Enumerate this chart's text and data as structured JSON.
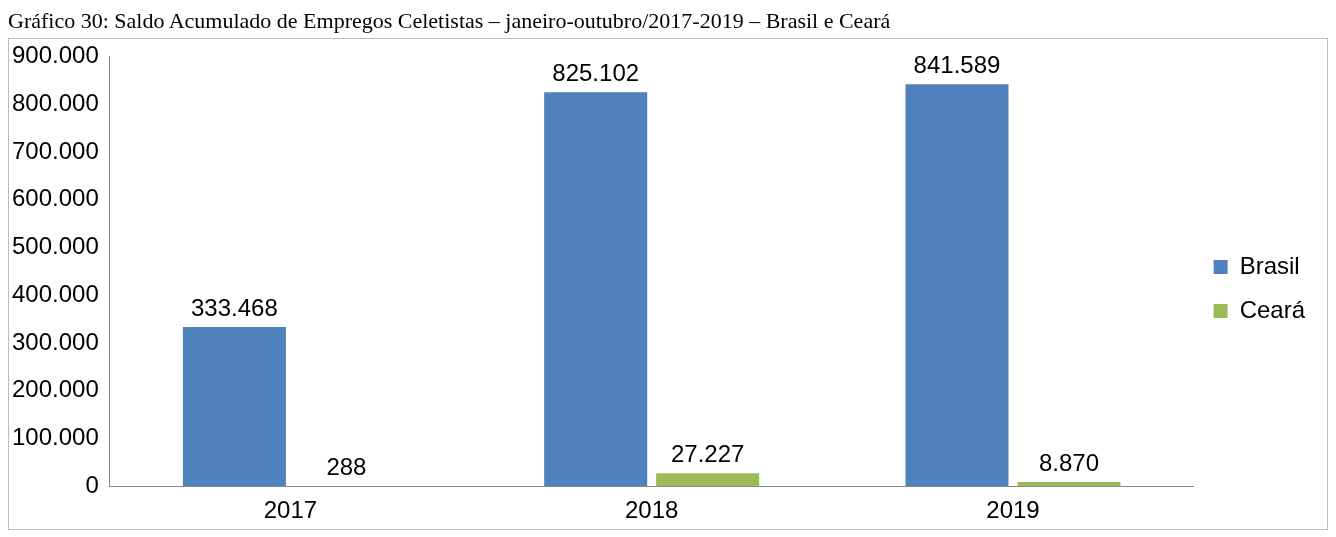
{
  "chart_data": {
    "type": "bar",
    "title": "Gráfico 30: Saldo Acumulado de Empregos Celetistas – janeiro-outubro/2017-2019 – Brasil e Ceará",
    "categories": [
      "2017",
      "2018",
      "2019"
    ],
    "series": [
      {
        "name": "Brasil",
        "color": "#4f81bd",
        "values": [
          333468,
          825102,
          841589
        ],
        "value_labels": [
          "333.468",
          "825.102",
          "841.589"
        ]
      },
      {
        "name": "Ceará",
        "color": "#9bbb59",
        "values": [
          288,
          27227,
          8870
        ],
        "value_labels": [
          "288",
          "27.227",
          "8.870"
        ]
      }
    ],
    "ylim": [
      0,
      900000
    ],
    "yticks": [
      {
        "value": 0,
        "label": "0"
      },
      {
        "value": 100000,
        "label": "100.000"
      },
      {
        "value": 200000,
        "label": "200.000"
      },
      {
        "value": 300000,
        "label": "300.000"
      },
      {
        "value": 400000,
        "label": "400.000"
      },
      {
        "value": 500000,
        "label": "500.000"
      },
      {
        "value": 600000,
        "label": "600.000"
      },
      {
        "value": 700000,
        "label": "700.000"
      },
      {
        "value": 800000,
        "label": "800.000"
      },
      {
        "value": 900000,
        "label": "900.000"
      }
    ],
    "grid": false,
    "legend": "right"
  }
}
